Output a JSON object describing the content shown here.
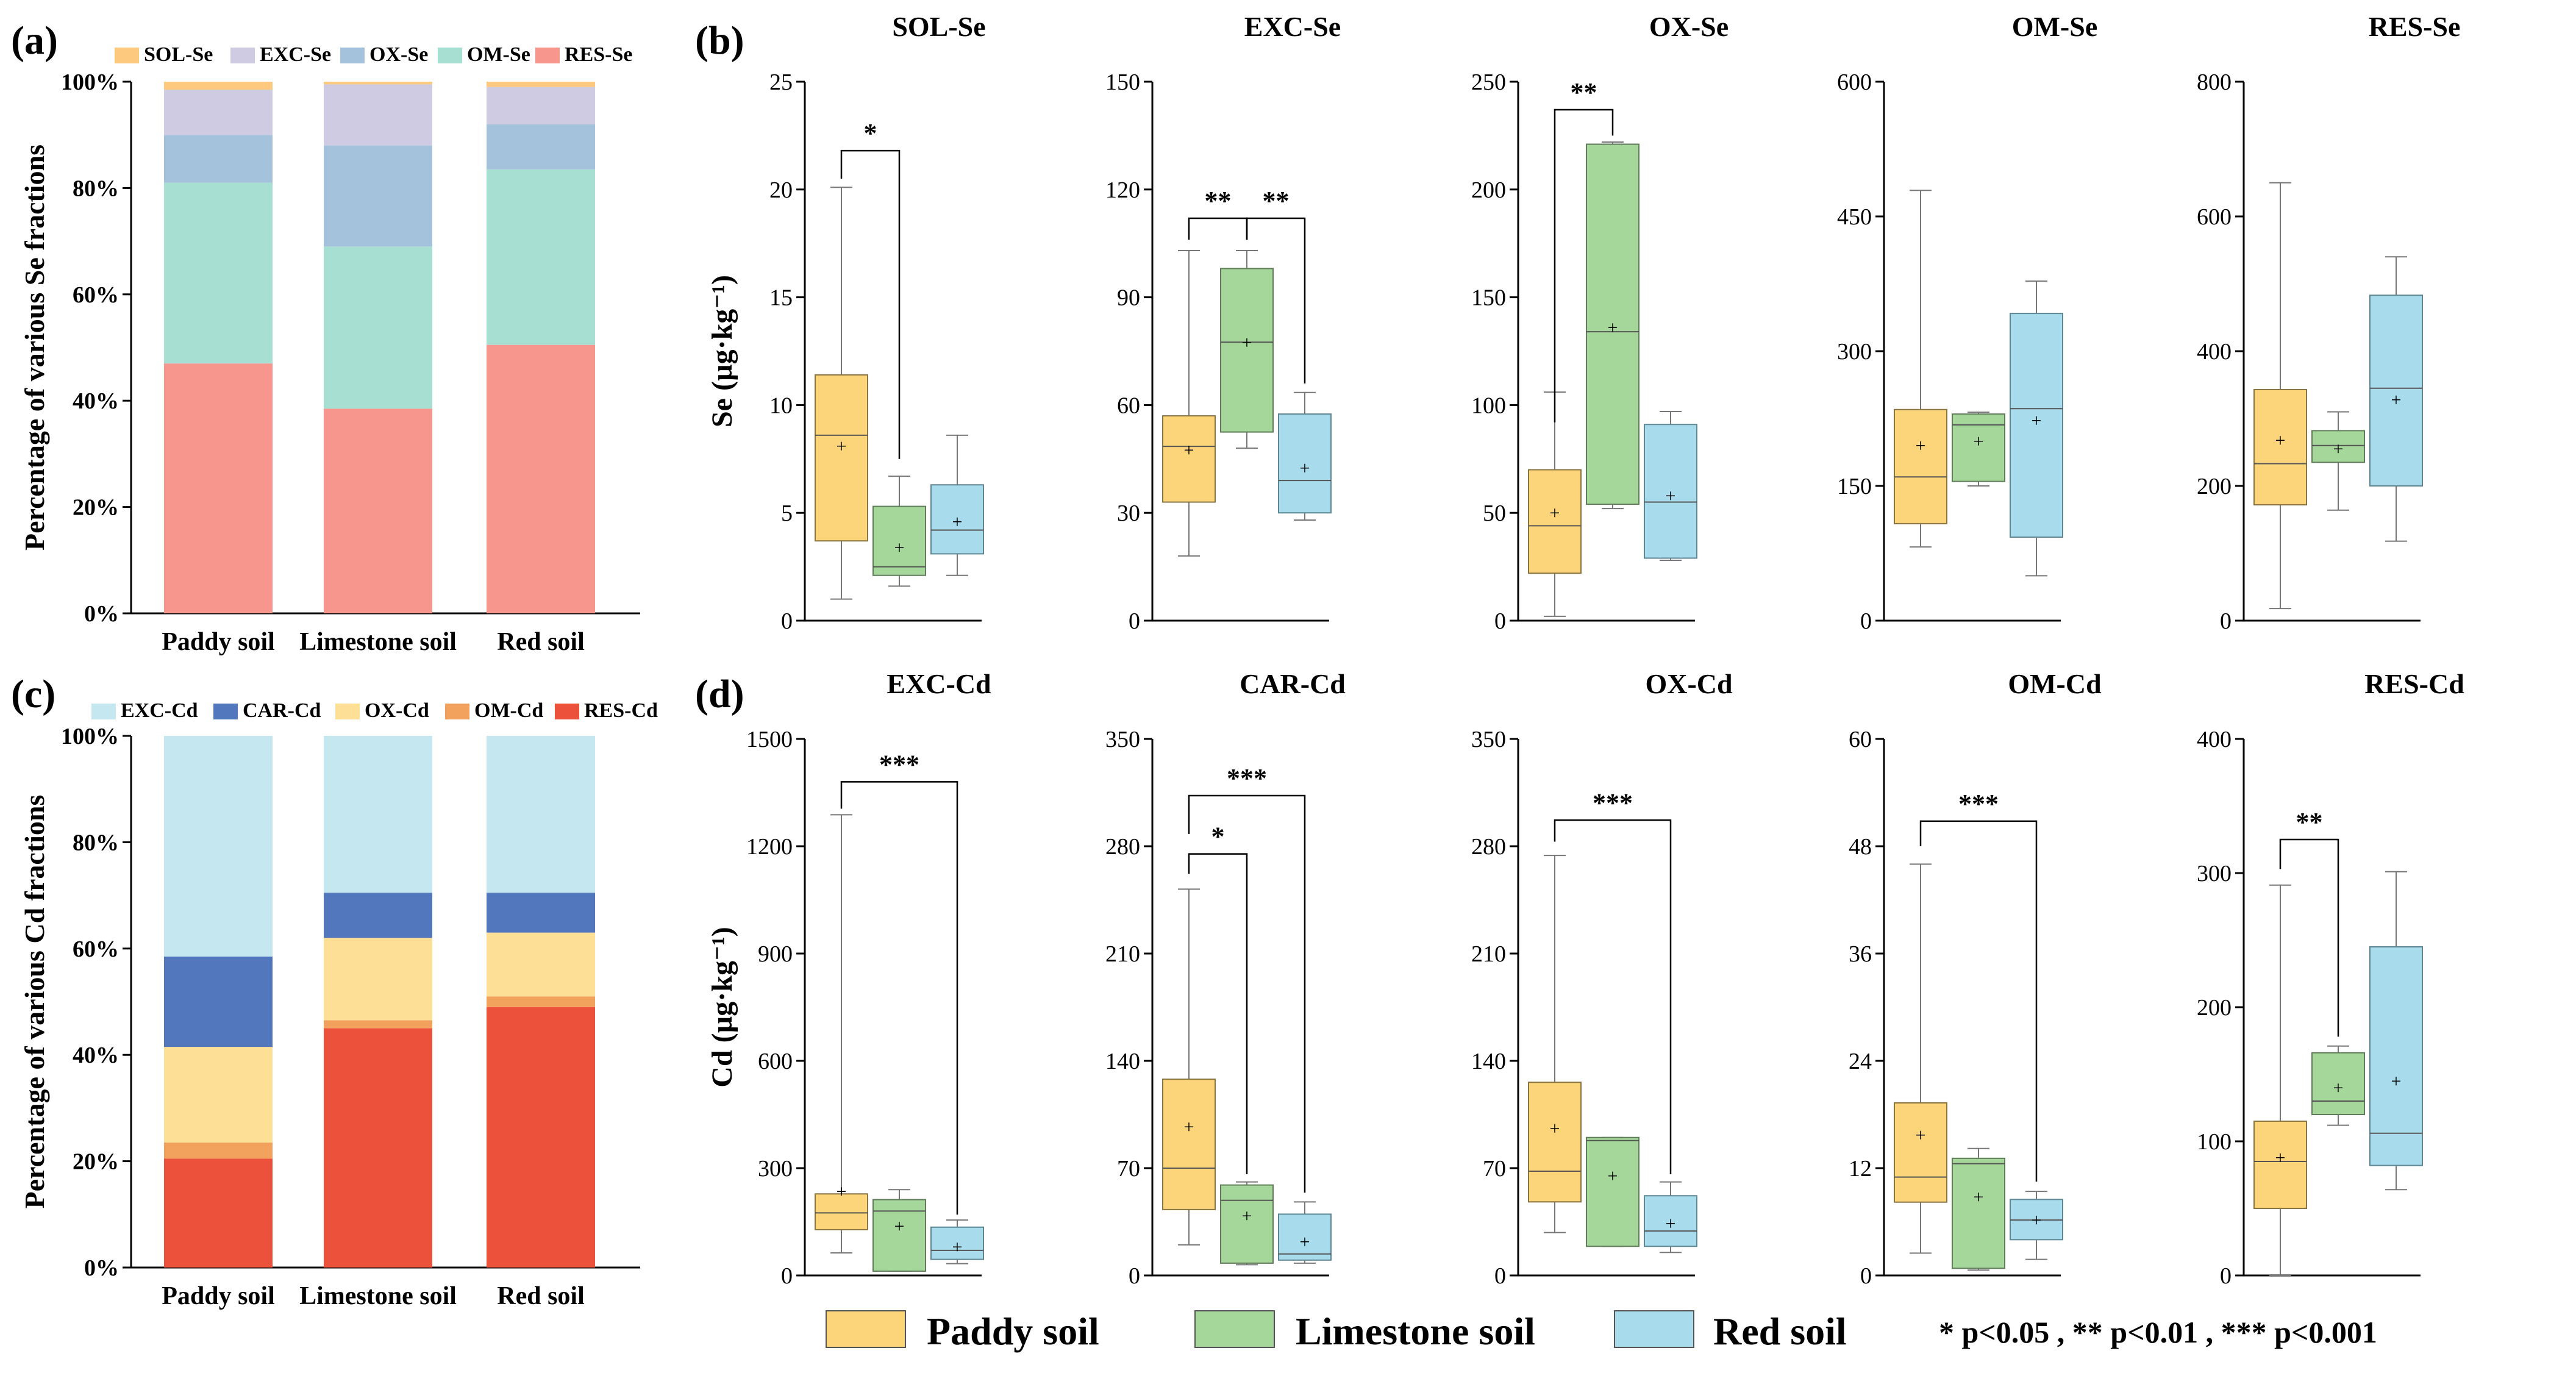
{
  "figure_labels": {
    "a": "(a)",
    "b": "(b)",
    "c": "(c)",
    "d": "(d)"
  },
  "legend": {
    "paddy": "Paddy soil",
    "limestone": "Limestone soil",
    "red": "Red soil",
    "significance": "* p<0.05 , ** p<0.01 , *** p<0.001",
    "colors": {
      "paddy": "#fcd57a",
      "limestone": "#a5d79b",
      "red": "#a8dcec"
    }
  },
  "chart_data": [
    {
      "id": "a",
      "type": "bar",
      "title": "",
      "ylabel": "Percentage of various Se fractions",
      "categories": [
        "Paddy soil",
        "Limestone soil",
        "Red soil"
      ],
      "ylim": [
        0,
        100
      ],
      "yticks": [
        "0%",
        "20%",
        "40%",
        "60%",
        "80%",
        "100%"
      ],
      "stack_order": [
        "RES-Se",
        "OM-Se",
        "OX-Se",
        "EXC-Se",
        "SOL-Se"
      ],
      "legend": [
        "SOL-Se",
        "EXC-Se",
        "OX-Se",
        "OM-Se",
        "RES-Se"
      ],
      "colors": {
        "SOL-Se": "#fcc97e",
        "EXC-Se": "#cfcbe2",
        "OX-Se": "#a4c2dc",
        "OM-Se": "#a8dfd3",
        "RES-Se": "#f7968c"
      },
      "series": [
        {
          "name": "RES-Se",
          "values": [
            47.0,
            38.5,
            50.5
          ]
        },
        {
          "name": "OM-Se",
          "values": [
            34.0,
            30.5,
            33.0
          ]
        },
        {
          "name": "OX-Se",
          "values": [
            9.0,
            19.0,
            8.5
          ]
        },
        {
          "name": "EXC-Se",
          "values": [
            8.5,
            11.5,
            7.0
          ]
        },
        {
          "name": "SOL-Se",
          "values": [
            1.5,
            0.5,
            1.0
          ]
        }
      ]
    },
    {
      "id": "c",
      "type": "bar",
      "title": "",
      "ylabel": "Percentage of various Cd fractions",
      "categories": [
        "Paddy soil",
        "Limestone soil",
        "Red soil"
      ],
      "ylim": [
        0,
        100
      ],
      "yticks": [
        "0%",
        "20%",
        "40%",
        "60%",
        "80%",
        "100%"
      ],
      "stack_order": [
        "RES-Cd",
        "OM-Cd",
        "OX-Cd",
        "CAR-Cd",
        "EXC-Cd"
      ],
      "legend": [
        "EXC-Cd",
        "CAR-Cd",
        "OX-Cd",
        "OM-Cd",
        "RES-Cd"
      ],
      "colors": {
        "EXC-Cd": "#c5e7f0",
        "CAR-Cd": "#5377bc",
        "OX-Cd": "#fddf95",
        "OM-Cd": "#f3a25d",
        "RES-Cd": "#ec523b"
      },
      "series": [
        {
          "name": "RES-Cd",
          "values": [
            20.5,
            45.0,
            49.0
          ]
        },
        {
          "name": "OM-Cd",
          "values": [
            3.0,
            1.5,
            2.0
          ]
        },
        {
          "name": "OX-Cd",
          "values": [
            18.0,
            15.5,
            12.0
          ]
        },
        {
          "name": "CAR-Cd",
          "values": [
            17.0,
            8.5,
            7.5
          ]
        },
        {
          "name": "EXC-Cd",
          "values": [
            41.5,
            29.5,
            29.5
          ]
        }
      ]
    },
    {
      "id": "b1",
      "type": "box",
      "title": "SOL-Se",
      "ylabel": "Se (µg·kg⁻¹)",
      "ylim": [
        0,
        25
      ],
      "yticks": [
        0,
        5,
        10,
        15,
        20,
        25
      ],
      "boxes": [
        {
          "group": "Paddy soil",
          "min": 1.0,
          "q1": 3.7,
          "median": 8.6,
          "q3": 11.4,
          "max": 20.1,
          "mean": 8.1
        },
        {
          "group": "Limestone soil",
          "min": 1.6,
          "q1": 2.1,
          "median": 2.5,
          "q3": 5.3,
          "max": 6.7,
          "mean": 3.4
        },
        {
          "group": "Red soil",
          "min": 2.1,
          "q1": 3.1,
          "median": 4.2,
          "q3": 6.3,
          "max": 8.6,
          "mean": 4.6
        }
      ],
      "annotations": [
        {
          "text": "*",
          "from": 0,
          "to": 1,
          "level": 21.8,
          "drop_from": 20.5,
          "drop_to": 7.5
        }
      ]
    },
    {
      "id": "b2",
      "type": "box",
      "title": "EXC-Se",
      "ylabel": "",
      "ylim": [
        0,
        150
      ],
      "yticks": [
        0,
        30,
        60,
        90,
        120,
        150
      ],
      "boxes": [
        {
          "group": "Paddy soil",
          "min": 18,
          "q1": 33,
          "median": 48.5,
          "q3": 57,
          "max": 103,
          "mean": 47.5
        },
        {
          "group": "Limestone soil",
          "min": 48,
          "q1": 52.5,
          "median": 77.5,
          "q3": 98,
          "max": 103,
          "mean": 77.5
        },
        {
          "group": "Red soil",
          "min": 28,
          "q1": 30,
          "median": 39,
          "q3": 57.5,
          "max": 63.5,
          "mean": 42.5
        }
      ],
      "annotations": [
        {
          "text": "**",
          "from": 0,
          "to": 1,
          "level": 112,
          "drop_from": 106,
          "drop_to": 106
        },
        {
          "text": "**",
          "from": 1,
          "to": 2,
          "level": 112,
          "drop_from": 106,
          "drop_to": 66
        }
      ]
    },
    {
      "id": "b3",
      "type": "box",
      "title": "OX-Se",
      "ylabel": "",
      "ylim": [
        0,
        250
      ],
      "yticks": [
        0,
        50,
        100,
        150,
        200,
        250
      ],
      "boxes": [
        {
          "group": "Paddy soil",
          "min": 2,
          "q1": 22,
          "median": 44,
          "q3": 70,
          "max": 106,
          "mean": 50
        },
        {
          "group": "Limestone soil",
          "min": 52,
          "q1": 54,
          "median": 134,
          "q3": 221,
          "max": 222,
          "mean": 136
        },
        {
          "group": "Red soil",
          "min": 28,
          "q1": 29,
          "median": 55,
          "q3": 91,
          "max": 97,
          "mean": 58
        }
      ],
      "annotations": [
        {
          "text": "**",
          "from": 0,
          "to": 1,
          "level": 237,
          "drop_from": 92,
          "drop_to": 225
        }
      ]
    },
    {
      "id": "b4",
      "type": "box",
      "title": "OM-Se",
      "ylabel": "",
      "ylim": [
        0,
        600
      ],
      "yticks": [
        0,
        150,
        300,
        450,
        600
      ],
      "boxes": [
        {
          "group": "Paddy soil",
          "min": 82,
          "q1": 108,
          "median": 160,
          "q3": 235,
          "max": 479,
          "mean": 195
        },
        {
          "group": "Limestone soil",
          "min": 150,
          "q1": 155,
          "median": 218,
          "q3": 230,
          "max": 232,
          "mean": 200
        },
        {
          "group": "Red soil",
          "min": 50,
          "q1": 93,
          "median": 236,
          "q3": 342,
          "max": 378,
          "mean": 223
        }
      ],
      "annotations": []
    },
    {
      "id": "b5",
      "type": "box",
      "title": "RES-Se",
      "ylabel": "",
      "ylim": [
        0,
        800
      ],
      "yticks": [
        0,
        200,
        400,
        600,
        800
      ],
      "boxes": [
        {
          "group": "Paddy soil",
          "min": 18,
          "q1": 172,
          "median": 233,
          "q3": 343,
          "max": 650,
          "mean": 268
        },
        {
          "group": "Limestone soil",
          "min": 164,
          "q1": 235,
          "median": 260,
          "q3": 282,
          "max": 310,
          "mean": 255
        },
        {
          "group": "Red soil",
          "min": 118,
          "q1": 200,
          "median": 345,
          "q3": 483,
          "max": 540,
          "mean": 328
        }
      ],
      "annotations": []
    },
    {
      "id": "d1",
      "type": "box",
      "title": "EXC-Cd",
      "ylabel": "Cd (µg·kg⁻¹)",
      "ylim": [
        0,
        1500
      ],
      "yticks": [
        0,
        300,
        600,
        900,
        1200,
        1500
      ],
      "boxes": [
        {
          "group": "Paddy soil",
          "min": 63,
          "q1": 128,
          "median": 175,
          "q3": 228,
          "max": 1288,
          "mean": 235
        },
        {
          "group": "Limestone soil",
          "min": 12,
          "q1": 12,
          "median": 180,
          "q3": 212,
          "max": 240,
          "mean": 138
        },
        {
          "group": "Red soil",
          "min": 33,
          "q1": 45,
          "median": 70,
          "q3": 135,
          "max": 155,
          "mean": 80
        }
      ],
      "annotations": [
        {
          "text": "***",
          "from": 0,
          "to": 2,
          "level": 1380,
          "drop_from": 1305,
          "drop_to": 170
        }
      ]
    },
    {
      "id": "d2",
      "type": "box",
      "title": "CAR-Cd",
      "ylabel": "",
      "ylim": [
        0,
        350
      ],
      "yticks": [
        0,
        70,
        140,
        210,
        280,
        350
      ],
      "boxes": [
        {
          "group": "Paddy soil",
          "min": 20,
          "q1": 43,
          "median": 70,
          "q3": 128,
          "max": 252,
          "mean": 97
        },
        {
          "group": "Limestone soil",
          "min": 7,
          "q1": 8,
          "median": 49,
          "q3": 59,
          "max": 61,
          "mean": 39
        },
        {
          "group": "Red soil",
          "min": 8,
          "q1": 10,
          "median": 14,
          "q3": 40,
          "max": 48,
          "mean": 22
        }
      ],
      "annotations": [
        {
          "text": "*",
          "from": 0,
          "to": 1,
          "level": 275,
          "drop_from": 262,
          "drop_to": 66
        },
        {
          "text": "***",
          "from": 0,
          "to": 2,
          "level": 313,
          "drop_from": 288,
          "drop_to": 54
        }
      ]
    },
    {
      "id": "d3",
      "type": "box",
      "title": "OX-Cd",
      "ylabel": "",
      "ylim": [
        0,
        350
      ],
      "yticks": [
        0,
        70,
        140,
        210,
        280,
        350
      ],
      "boxes": [
        {
          "group": "Paddy soil",
          "min": 28,
          "q1": 48,
          "median": 68,
          "q3": 126,
          "max": 274,
          "mean": 96
        },
        {
          "group": "Limestone soil",
          "min": 19,
          "q1": 19,
          "median": 88,
          "q3": 90,
          "max": 90,
          "mean": 65
        },
        {
          "group": "Red soil",
          "min": 15,
          "q1": 19,
          "median": 29,
          "q3": 52,
          "max": 61,
          "mean": 34
        }
      ],
      "annotations": [
        {
          "text": "***",
          "from": 0,
          "to": 2,
          "level": 297,
          "drop_from": 283,
          "drop_to": 66
        }
      ]
    },
    {
      "id": "d4",
      "type": "box",
      "title": "OM-Cd",
      "ylabel": "",
      "ylim": [
        0,
        60
      ],
      "yticks": [
        0,
        12,
        24,
        36,
        48,
        60
      ],
      "boxes": [
        {
          "group": "Paddy soil",
          "min": 2.5,
          "q1": 8.2,
          "median": 11.0,
          "q3": 19.3,
          "max": 46.0,
          "mean": 15.7
        },
        {
          "group": "Limestone soil",
          "min": 0.6,
          "q1": 0.8,
          "median": 12.5,
          "q3": 13.1,
          "max": 14.2,
          "mean": 8.8
        },
        {
          "group": "Red soil",
          "min": 1.8,
          "q1": 4.0,
          "median": 6.2,
          "q3": 8.5,
          "max": 9.4,
          "mean": 6.2
        }
      ],
      "annotations": [
        {
          "text": "***",
          "from": 0,
          "to": 2,
          "level": 50.8,
          "drop_from": 48,
          "drop_to": 10.5
        }
      ]
    },
    {
      "id": "d5",
      "type": "box",
      "title": "RES-Cd",
      "ylabel": "",
      "ylim": [
        0,
        400
      ],
      "yticks": [
        0,
        100,
        200,
        300,
        400
      ],
      "boxes": [
        {
          "group": "Paddy soil",
          "min": 0,
          "q1": 50,
          "median": 85,
          "q3": 115,
          "max": 291,
          "mean": 88
        },
        {
          "group": "Limestone soil",
          "min": 112,
          "q1": 120,
          "median": 130,
          "q3": 166,
          "max": 171,
          "mean": 140
        },
        {
          "group": "Red soil",
          "min": 64,
          "q1": 82,
          "median": 106,
          "q3": 245,
          "max": 301,
          "mean": 145
        }
      ],
      "annotations": [
        {
          "text": "**",
          "from": 0,
          "to": 1,
          "level": 325,
          "drop_from": 303,
          "drop_to": 178
        }
      ]
    }
  ]
}
